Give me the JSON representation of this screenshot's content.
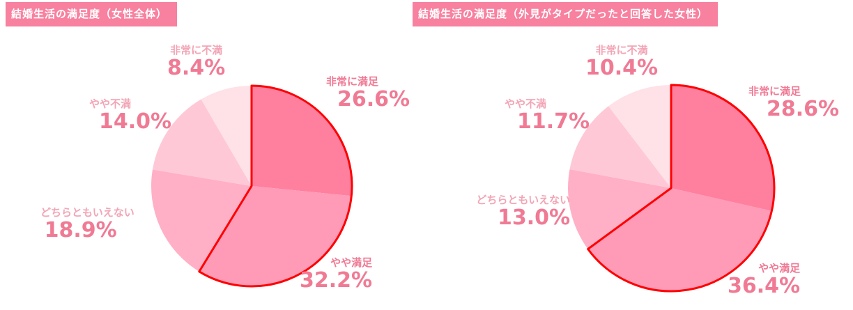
{
  "chart_data": [
    {
      "type": "pie",
      "title": "結婚生活の満足度（女性全体）",
      "categories": [
        "非常に満足",
        "やや満足",
        "どちらともいえない",
        "やや不満",
        "非常に不満"
      ],
      "values": [
        26.6,
        32.2,
        18.9,
        14.0,
        8.4
      ],
      "labels": [
        "26.6%",
        "32.2%",
        "18.9%",
        "14.0%",
        "8.4%"
      ],
      "colors": [
        "#ff7f9f",
        "#ff9ab7",
        "#ffb0c6",
        "#ffc8d7",
        "#ffe1e8"
      ],
      "highlight_border": "#ff0000"
    },
    {
      "type": "pie",
      "title": "結婚生活の満足度（外見がタイプだったと回答した女性）",
      "categories": [
        "非常に満足",
        "やや満足",
        "どちらともいえない",
        "やや不満",
        "非常に不満"
      ],
      "values": [
        28.6,
        36.4,
        13.0,
        11.7,
        10.4
      ],
      "labels": [
        "28.6%",
        "36.4%",
        "13.0%",
        "11.7%",
        "10.4%"
      ],
      "colors": [
        "#ff7f9f",
        "#ff9ab7",
        "#ffb0c6",
        "#ffc8d7",
        "#ffe1e8"
      ],
      "highlight_border": "#ff0000"
    }
  ]
}
